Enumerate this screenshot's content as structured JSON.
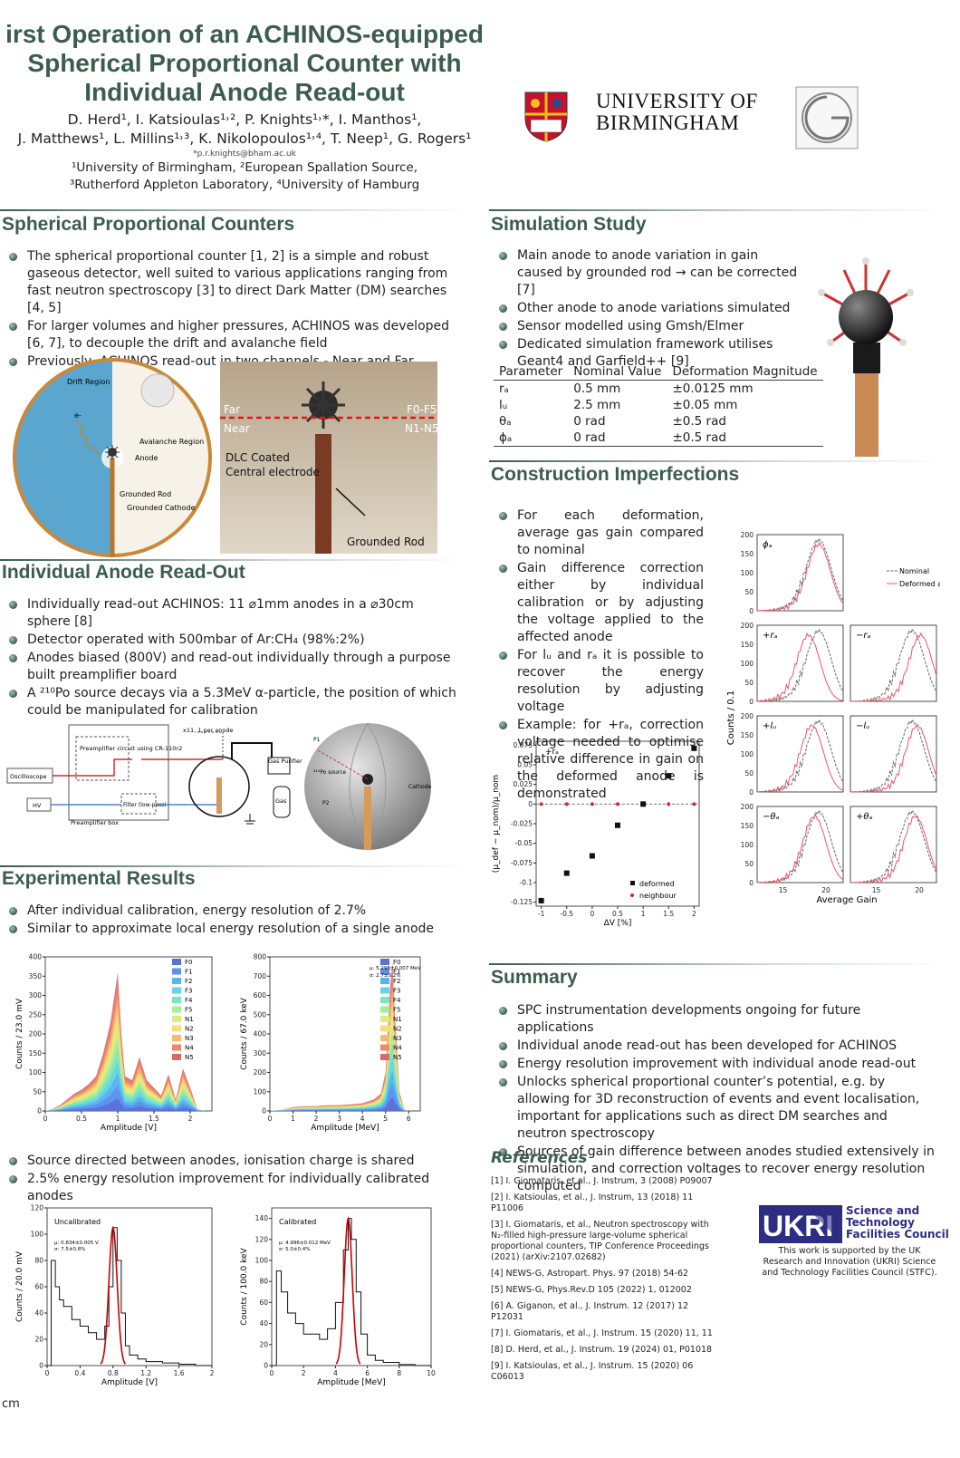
{
  "header": {
    "title_lines": [
      "irst Operation of an ACHINOS-equipped",
      "Spherical Proportional Counter with",
      "Individual Anode Read-out"
    ],
    "authors_line1": "D. Herd¹, I. Katsioulas¹˒², P. Knights¹˒*, I. Manthos¹,",
    "authors_line2": "J. Matthews¹, L. Millins¹˒³, K. Nikolopoulos¹˒⁴, T. Neep¹, G. Rogers¹",
    "email": "*p.r.knights@bham.ac.uk",
    "aff1": "¹University of Birmingham, ²European Spallation Source,",
    "aff2": "³Rutherford Appleton Laboratory, ⁴University of Hamburg",
    "university_line1": "UNIVERSITY OF",
    "university_line2": "BIRMINGHAM"
  },
  "sections": {
    "spc": {
      "title": "Spherical Proportional Counters",
      "bullets": [
        "The spherical proportional counter [1, 2] is a simple and robust gaseous detector, well suited to various applications ranging from fast neutron spectroscopy [3] to direct Dark Matter (DM) searches [4, 5]",
        "For larger volumes and higher pressures, ACHINOS was developed [6, 7], to decouple the drift and avalanche field",
        "Previously, ACHINOS read-out in two channels - Near and Far"
      ]
    },
    "readout": {
      "title": "Individual Anode Read-Out",
      "bullets": [
        "Individually read-out ACHINOS: 11 ⌀1mm anodes in a ⌀30cm sphere [8]",
        "Detector operated with 500mbar of Ar:CH₄ (98%:2%)",
        "Anodes biased (800V) and read-out individually through a purpose built preamplifier board",
        "A ²¹⁰Po source decays via a 5.3MeV α-particle, the position of which could be manipulated for calibration"
      ]
    },
    "results": {
      "title": "Experimental Results",
      "bullets1": [
        "After individual calibration, energy resolution of 2.7%",
        "Similar to approximate local energy resolution of a single anode"
      ],
      "bullets2": [
        "Source directed between anodes, ionisation charge is shared",
        "2.5% energy resolution improvement for individually calibrated anodes"
      ]
    },
    "sim": {
      "title": "Simulation Study",
      "bullets": [
        "Main anode to anode variation in gain caused by grounded rod → can be corrected [7]",
        "Other anode to anode variations simulated",
        "Sensor modelled using Gmsh/Elmer",
        "Dedicated simulation framework utilises Geant4 and Garfield++ [9]"
      ]
    },
    "table": {
      "headers": [
        "Parameter",
        "Nominal Value",
        "Deformation Magnitude"
      ],
      "rows": [
        [
          "rₐ",
          "0.5 mm",
          "±0.0125 mm"
        ],
        [
          "lᵤ",
          "2.5 mm",
          "±0.05 mm"
        ],
        [
          "θₐ",
          "0 rad",
          "±0.5 rad"
        ],
        [
          "ϕₐ",
          "0 rad",
          "±0.5 rad"
        ]
      ]
    },
    "construction": {
      "title": "Construction Imperfections",
      "bullets": [
        "For each deformation, average gas gain compared to nominal",
        "Gain difference correction either by individual calibration or by adjusting the voltage applied to the affected anode",
        "For lᵤ and rₐ it is possible to recover the energy resolution by adjusting voltage",
        "Example: for +rₐ, correction voltage needed to optimise relative difference in gain on the deformed anode is demonstrated"
      ]
    },
    "summary": {
      "title": "Summary",
      "bullets": [
        "SPC instrumentation developments ongoing for future applications",
        "Individual anode read-out has been developed for ACHINOS",
        "Energy resolution improvement with individual anode read-out",
        "Unlocks spherical proportional counter’s potential, e.g. by allowing for 3D reconstruction of events and event localisation, important for applications such as direct DM searches and neutron spectroscopy",
        "Sources of gain difference between anodes studied extensively in simulation, and correction voltages to recover energy resolution computed"
      ]
    },
    "refs": {
      "title": "References",
      "items": [
        "[1] I. Giomataris, et al., J. Instrum, 3 (2008) P09007",
        "[2] I. Katsioulas, et al., J. Instrum, 13 (2018) 11 P11006",
        "[3] I. Giomataris, et al., Neutron spectroscopy with N₂-filled high-pressure large-volume spherical proportional counters, TIP Conference Proceedings (2021) (arXiv:2107.02682)",
        "[4] NEWS-G, Astropart. Phys. 97 (2018) 54-62",
        "[5] NEWS-G, Phys.Rev.D 105 (2022) 1, 012002",
        "[6] A. Giganon, et al., J. Instrum. 12 (2017) 12 P12031",
        "[7] I. Giomataris, et al., J. Instrum. 15 (2020) 11, 11",
        "[8] D. Herd, et al., J. Instrum. 19 (2024) 01, P01018",
        "[9] I. Katsioulas, et al., J. Instrum. 15 (2020) 06 C06013"
      ]
    },
    "ukri": {
      "line1": "Science and",
      "line2": "Technology",
      "line3": "Facilities Council",
      "note": "This work is supported by the UK Research and Innovation (UKRI) Science and Technology Facilities Council (STFC)."
    },
    "footer": "cm"
  },
  "figures": {
    "drift": {
      "labels": [
        "Drift Region",
        "e-",
        "Avalanche Region",
        "Anode",
        "Grounded Rod",
        "Grounded Cathode"
      ]
    },
    "photo": {
      "labels": [
        "Far",
        "Near",
        "F0-F5",
        "N1-N5",
        "DLC Coated",
        "Central  electrode",
        "Grounded Rod"
      ]
    },
    "circuit": {
      "labels": [
        "Preamplifier circuit using CR-110r2",
        "x11, 1 per anode",
        "Gas Purifier",
        "Gas",
        "Oscilloscope",
        "HV",
        "Filter (low-pass)",
        "Preamplifier box",
        "Cathode",
        "P1",
        "P2",
        "²¹⁰Po source"
      ]
    }
  },
  "chart_data": [
    {
      "type": "area",
      "name": "amp",
      "xlabel": "Amplitude [V]",
      "ylabel": "Counts / 23.0 mV",
      "ylim": [
        0,
        400
      ],
      "xlim": [
        0,
        2.3
      ],
      "legend": [
        "F0",
        "F1",
        "F2",
        "F3",
        "F4",
        "F5",
        "N1",
        "N2",
        "N3",
        "N4",
        "N5"
      ],
      "colors": [
        "#5b6fd6",
        "#5f8ff0",
        "#58b3f2",
        "#66d4e6",
        "#7de3c3",
        "#a6ec9a",
        "#d6ef83",
        "#f6e07a",
        "#f7b870",
        "#ee8a6a",
        "#d96a6a"
      ],
      "x": [
        0,
        0.1,
        0.2,
        0.3,
        0.4,
        0.5,
        0.6,
        0.7,
        0.8,
        0.9,
        1.0,
        1.05,
        1.1,
        1.2,
        1.3,
        1.4,
        1.5,
        1.6,
        1.7,
        1.8,
        1.9,
        2.0,
        2.1,
        2.2,
        2.3
      ],
      "values": [
        0,
        5,
        15,
        30,
        45,
        55,
        70,
        90,
        150,
        230,
        360,
        200,
        90,
        80,
        140,
        80,
        60,
        40,
        95,
        30,
        110,
        60,
        5,
        0,
        0
      ]
    },
    {
      "type": "area",
      "name": "energy",
      "xlabel": "Amplitude [MeV]",
      "ylabel": "Counts / 67.0 keV",
      "ylim": [
        0,
        800
      ],
      "xlim": [
        0,
        6.5
      ],
      "legend": [
        "F0",
        "F1",
        "F2",
        "F3",
        "F4",
        "F5",
        "N1",
        "N2",
        "N3",
        "N4",
        "N5"
      ],
      "annotation": [
        "μ: 5.298±0.007 MeV",
        "σ: 2.7±0.2%"
      ],
      "x": [
        0,
        0.5,
        1,
        1.5,
        2,
        2.5,
        3,
        3.5,
        4,
        4.5,
        4.8,
        5.0,
        5.2,
        5.3,
        5.4,
        5.6,
        5.8,
        6.0,
        6.5
      ],
      "values": [
        0,
        5,
        20,
        25,
        25,
        30,
        30,
        35,
        40,
        60,
        90,
        200,
        650,
        770,
        500,
        100,
        10,
        0,
        0
      ]
    },
    {
      "type": "line",
      "name": "uncal",
      "xlabel": "Amplitude [V]",
      "ylabel": "Counts / 20.0 mV",
      "ylim": [
        0,
        120
      ],
      "xlim": [
        0,
        2.0
      ],
      "label": "Uncalibrated",
      "annotation": [
        "μ: 0.834±0.005 V",
        "σ: 7.5±0.8%"
      ],
      "x": [
        0,
        0.05,
        0.1,
        0.15,
        0.2,
        0.3,
        0.4,
        0.5,
        0.6,
        0.7,
        0.75,
        0.8,
        0.85,
        0.9,
        0.95,
        1.0,
        1.1,
        1.2,
        1.4,
        1.6,
        1.8,
        2.0
      ],
      "values": [
        0,
        80,
        60,
        50,
        45,
        35,
        30,
        25,
        20,
        30,
        60,
        105,
        80,
        40,
        15,
        8,
        5,
        3,
        2,
        1,
        0,
        0
      ]
    },
    {
      "type": "line",
      "name": "cal",
      "xlabel": "Amplitude [MeV]",
      "ylabel": "Counts / 100.0 keV",
      "ylim": [
        0,
        150
      ],
      "xlim": [
        0,
        10
      ],
      "label": "Calibrated",
      "annotation": [
        "μ: 4.996±0.012 MeV",
        "σ: 5.0±0.4%"
      ],
      "x": [
        0,
        0.3,
        0.6,
        1,
        1.5,
        2,
        2.5,
        3,
        3.5,
        4,
        4.5,
        4.8,
        5,
        5.3,
        5.6,
        6,
        6.5,
        7,
        8,
        9,
        10
      ],
      "values": [
        0,
        90,
        70,
        50,
        40,
        30,
        30,
        25,
        35,
        60,
        110,
        140,
        120,
        70,
        30,
        10,
        5,
        3,
        1,
        0,
        0
      ]
    },
    {
      "type": "scatter",
      "name": "corr",
      "xlabel": "ΔV [%]",
      "ylabel": "(μ_def − μ_nom)/μ_nom",
      "xlim": [
        -1.1,
        2.1
      ],
      "ylim": [
        -0.13,
        0.08
      ],
      "label": "+rₐ",
      "series": [
        {
          "name": "deformed",
          "x": [
            -1.0,
            -0.5,
            0.0,
            0.5,
            1.0,
            1.5,
            2.0
          ],
          "values": [
            -0.123,
            -0.088,
            -0.066,
            -0.027,
            0.0,
            0.036,
            0.071
          ]
        },
        {
          "name": "neighbour",
          "x": [
            -1.0,
            -0.5,
            0.0,
            0.5,
            1.0,
            1.5,
            2.0
          ],
          "values": [
            0,
            0,
            0,
            0,
            0,
            0,
            0
          ]
        }
      ],
      "xticks": [
        -1.0,
        -0.5,
        0.0,
        0.5,
        1.0,
        1.5,
        2.0
      ],
      "yticks": [
        -0.125,
        -0.1,
        -0.075,
        -0.05,
        -0.025,
        0.0,
        0.025,
        0.05,
        0.075
      ]
    },
    {
      "type": "line",
      "name": "gain",
      "xlabel": "Average Gain",
      "ylabel": "Counts / 0.1",
      "ylim": [
        0,
        200
      ],
      "legend": [
        "Nominal",
        "Deformed anode"
      ],
      "panels": [
        "ϕₐ",
        "+rₐ",
        "−rₐ",
        "+lᵤ",
        "−lᵤ",
        "−θₐ",
        "+θₐ"
      ],
      "xticks": [
        15,
        20
      ]
    }
  ]
}
